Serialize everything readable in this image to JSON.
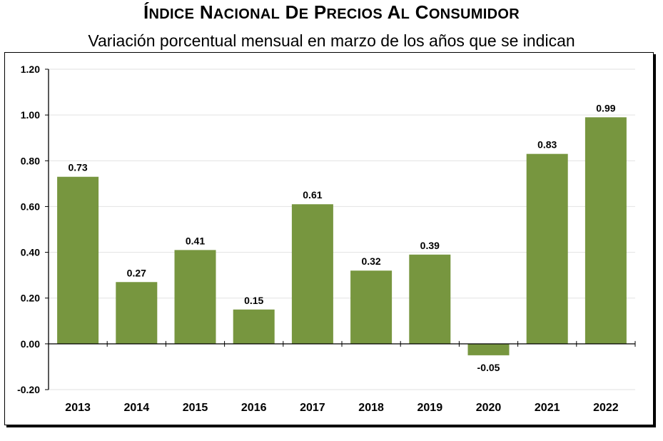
{
  "header": {
    "title": "Índice Nacional de Precios al Consumidor",
    "subtitle": "Variación porcentual mensual en marzo de los años que se indican"
  },
  "colors": {
    "bar": "#77963f",
    "grid": "#e2e2e2",
    "axis": "#000000"
  },
  "chart_data": {
    "type": "bar",
    "title": "Índice Nacional de Precios al Consumidor",
    "subtitle": "Variación porcentual mensual en marzo de los años que se indican",
    "categories": [
      "2013",
      "2014",
      "2015",
      "2016",
      "2017",
      "2018",
      "2019",
      "2020",
      "2021",
      "2022"
    ],
    "values": [
      0.73,
      0.27,
      0.41,
      0.15,
      0.61,
      0.32,
      0.39,
      -0.05,
      0.83,
      0.99
    ],
    "data_labels": [
      "0.73",
      "0.27",
      "0.41",
      "0.15",
      "0.61",
      "0.32",
      "0.39",
      "-0.05",
      "0.83",
      "0.99"
    ],
    "ylim": [
      -0.2,
      1.2
    ],
    "yticks": [
      -0.2,
      0.0,
      0.2,
      0.4,
      0.6,
      0.8,
      1.0,
      1.2
    ],
    "ytick_labels": [
      "-0.20",
      "0.00",
      "0.20",
      "0.40",
      "0.60",
      "0.80",
      "1.00",
      "1.20"
    ],
    "grid": true,
    "legend": "none",
    "xlabel": "",
    "ylabel": ""
  }
}
